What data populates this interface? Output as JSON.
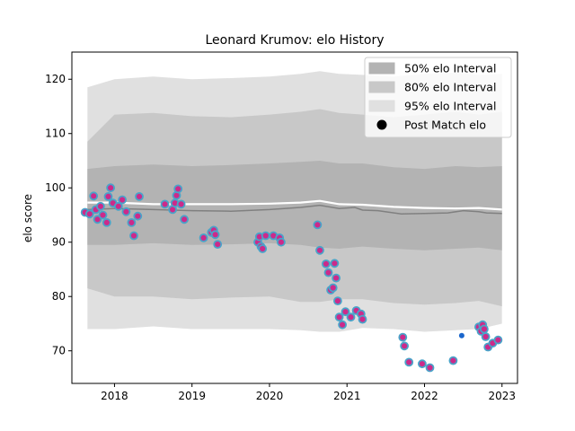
{
  "chart_data": {
    "type": "line",
    "title": "Leonard Krumov: elo History",
    "xlabel": "",
    "ylabel": "elo score",
    "xlim": [
      2017.45,
      2023.2
    ],
    "ylim": [
      64,
      125
    ],
    "x_ticks": [
      2018,
      2019,
      2020,
      2021,
      2022,
      2023
    ],
    "x_tick_labels": [
      "2018",
      "2019",
      "2020",
      "2021",
      "2022",
      "2023"
    ],
    "y_ticks": [
      70,
      80,
      90,
      100,
      110,
      120
    ],
    "y_tick_labels": [
      "70",
      "80",
      "90",
      "100",
      "110",
      "120"
    ],
    "grid": false,
    "legend_position": "upper right",
    "legend": [
      {
        "label": "50% elo Interval",
        "kind": "band",
        "color": "#b3b3b3"
      },
      {
        "label": "80% elo Interval",
        "kind": "band",
        "color": "#c8c8c8"
      },
      {
        "label": "95% elo Interval",
        "kind": "band",
        "color": "#e0e0e0"
      },
      {
        "label": "Post Match elo",
        "kind": "dot",
        "color": "#000000"
      }
    ],
    "mean_line": {
      "color": "#808080",
      "x": [
        2017.65,
        2018.0,
        2018.5,
        2019.0,
        2019.5,
        2020.0,
        2020.4,
        2020.65,
        2020.9,
        2021.1,
        2021.2,
        2021.4,
        2021.7,
        2022.0,
        2022.3,
        2022.5,
        2022.7,
        2022.8,
        2023.0
      ],
      "y": [
        96.0,
        96.2,
        96.0,
        95.8,
        95.7,
        96.0,
        96.4,
        96.8,
        96.2,
        96.4,
        95.9,
        95.8,
        95.2,
        95.3,
        95.4,
        95.8,
        95.6,
        95.4,
        95.3
      ]
    },
    "white_line": {
      "color": "#ffffff",
      "x": [
        2017.65,
        2018.0,
        2018.5,
        2019.0,
        2019.5,
        2020.0,
        2020.4,
        2020.65,
        2020.9,
        2021.2,
        2021.6,
        2022.0,
        2022.4,
        2022.7,
        2023.0
      ],
      "y": [
        97.3,
        97.3,
        97.0,
        97.0,
        97.0,
        97.1,
        97.3,
        97.6,
        97.0,
        96.9,
        96.5,
        96.3,
        96.2,
        96.3,
        96.0
      ]
    },
    "bands": {
      "x": [
        2017.65,
        2018.0,
        2018.5,
        2019.0,
        2019.5,
        2020.0,
        2020.4,
        2020.65,
        2020.9,
        2021.2,
        2021.6,
        2022.0,
        2022.4,
        2022.7,
        2023.0
      ],
      "b95_upper": [
        118.5,
        120.0,
        120.5,
        120.0,
        120.2,
        120.5,
        121.0,
        121.5,
        121.0,
        120.8,
        120.5,
        121.0,
        121.2,
        120.8,
        121.0
      ],
      "b95_lower": [
        74.0,
        74.0,
        74.5,
        74.0,
        74.0,
        74.0,
        73.8,
        73.5,
        73.5,
        74.2,
        74.0,
        73.5,
        73.8,
        74.0,
        75.0
      ],
      "b80_upper": [
        108.5,
        113.5,
        113.8,
        113.2,
        113.0,
        113.5,
        114.0,
        114.5,
        113.8,
        113.5,
        113.0,
        113.5,
        114.0,
        113.5,
        114.0
      ],
      "b80_lower": [
        81.5,
        80.0,
        80.0,
        79.5,
        79.8,
        80.0,
        79.0,
        79.0,
        79.5,
        79.5,
        78.8,
        78.5,
        78.8,
        79.2,
        78.2
      ],
      "b50_upper": [
        103.5,
        104.0,
        104.3,
        104.0,
        104.2,
        104.5,
        104.8,
        105.0,
        104.5,
        104.5,
        103.8,
        103.5,
        104.0,
        103.8,
        104.0
      ],
      "b50_lower": [
        89.5,
        89.5,
        89.8,
        89.5,
        89.6,
        89.8,
        89.5,
        89.0,
        88.8,
        89.2,
        88.8,
        88.5,
        88.8,
        89.0,
        88.5
      ]
    },
    "points_marker": {
      "fill": "#cc2a8a",
      "edge": "#4aa3c9"
    },
    "points": [
      {
        "x": 2017.62,
        "y": 95.5
      },
      {
        "x": 2017.68,
        "y": 95.2
      },
      {
        "x": 2017.73,
        "y": 98.5
      },
      {
        "x": 2017.76,
        "y": 96.0
      },
      {
        "x": 2017.78,
        "y": 94.2
      },
      {
        "x": 2017.82,
        "y": 96.6
      },
      {
        "x": 2017.85,
        "y": 95.0
      },
      {
        "x": 2017.9,
        "y": 93.6
      },
      {
        "x": 2017.92,
        "y": 98.4
      },
      {
        "x": 2017.95,
        "y": 100.0
      },
      {
        "x": 2017.98,
        "y": 97.2
      },
      {
        "x": 2018.05,
        "y": 96.6
      },
      {
        "x": 2018.1,
        "y": 97.8
      },
      {
        "x": 2018.15,
        "y": 95.6
      },
      {
        "x": 2018.22,
        "y": 93.6
      },
      {
        "x": 2018.25,
        "y": 91.2
      },
      {
        "x": 2018.3,
        "y": 94.8
      },
      {
        "x": 2018.32,
        "y": 98.4
      },
      {
        "x": 2018.65,
        "y": 97.0
      },
      {
        "x": 2018.75,
        "y": 96.0
      },
      {
        "x": 2018.78,
        "y": 97.2
      },
      {
        "x": 2018.8,
        "y": 98.6
      },
      {
        "x": 2018.82,
        "y": 99.8
      },
      {
        "x": 2018.86,
        "y": 97.0
      },
      {
        "x": 2018.9,
        "y": 94.2
      },
      {
        "x": 2019.15,
        "y": 90.8
      },
      {
        "x": 2019.25,
        "y": 91.8
      },
      {
        "x": 2019.28,
        "y": 92.2
      },
      {
        "x": 2019.3,
        "y": 91.4
      },
      {
        "x": 2019.33,
        "y": 89.6
      },
      {
        "x": 2019.85,
        "y": 90.0
      },
      {
        "x": 2019.87,
        "y": 91.0
      },
      {
        "x": 2019.89,
        "y": 89.2
      },
      {
        "x": 2019.91,
        "y": 88.8
      },
      {
        "x": 2019.95,
        "y": 91.2
      },
      {
        "x": 2020.05,
        "y": 91.2
      },
      {
        "x": 2020.13,
        "y": 90.8
      },
      {
        "x": 2020.15,
        "y": 90.0
      },
      {
        "x": 2020.62,
        "y": 93.2
      },
      {
        "x": 2020.65,
        "y": 88.5
      },
      {
        "x": 2020.73,
        "y": 86.0
      },
      {
        "x": 2020.76,
        "y": 84.4
      },
      {
        "x": 2020.79,
        "y": 81.2
      },
      {
        "x": 2020.82,
        "y": 81.6
      },
      {
        "x": 2020.84,
        "y": 86.1
      },
      {
        "x": 2020.86,
        "y": 83.4
      },
      {
        "x": 2020.88,
        "y": 79.2
      },
      {
        "x": 2020.9,
        "y": 76.2
      },
      {
        "x": 2020.94,
        "y": 74.8
      },
      {
        "x": 2020.98,
        "y": 77.2
      },
      {
        "x": 2021.05,
        "y": 76.2
      },
      {
        "x": 2021.12,
        "y": 77.4
      },
      {
        "x": 2021.18,
        "y": 76.8
      },
      {
        "x": 2021.2,
        "y": 75.8
      },
      {
        "x": 2021.72,
        "y": 72.5
      },
      {
        "x": 2021.74,
        "y": 70.9
      },
      {
        "x": 2021.8,
        "y": 67.9
      },
      {
        "x": 2021.97,
        "y": 67.6
      },
      {
        "x": 2022.07,
        "y": 66.9
      },
      {
        "x": 2022.37,
        "y": 68.2
      },
      {
        "x": 2022.7,
        "y": 74.4
      },
      {
        "x": 2022.73,
        "y": 73.6
      },
      {
        "x": 2022.75,
        "y": 74.8
      },
      {
        "x": 2022.77,
        "y": 74.0
      },
      {
        "x": 2022.79,
        "y": 72.6
      },
      {
        "x": 2022.82,
        "y": 70.7
      },
      {
        "x": 2022.88,
        "y": 71.4
      },
      {
        "x": 2022.95,
        "y": 72.0
      }
    ],
    "highlight_point": {
      "x": 2022.48,
      "y": 72.8,
      "color": "#1a66cc"
    }
  }
}
